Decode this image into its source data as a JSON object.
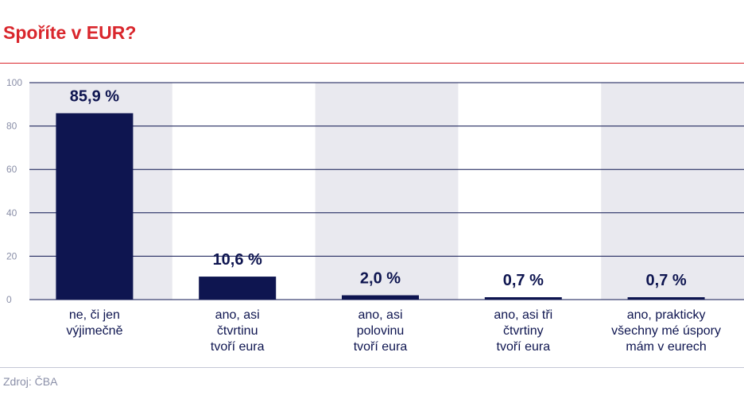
{
  "title": "Spoříte v EUR?",
  "source": "Zdroj: ČBA",
  "colors": {
    "title": "#d9262c",
    "bar": "#0e1550",
    "band": "#e9e9ef",
    "grid": "#0e1550",
    "tick": "#8a8fa8"
  },
  "chart_data": {
    "type": "bar",
    "categories": [
      [
        "ne, či jen",
        "výjimečně"
      ],
      [
        "ano, asi",
        "čtvrtinu",
        "tvoří eura"
      ],
      [
        "ano, asi",
        "polovinu",
        "tvoří eura"
      ],
      [
        "ano, asi tři",
        "čtvrtiny",
        "tvoří eura"
      ],
      [
        "ano, prakticky",
        "všechny mé úspory",
        "mám v eurech"
      ]
    ],
    "values": [
      85.9,
      10.6,
      2.0,
      0.7,
      0.7
    ],
    "value_labels": [
      "85,9 %",
      "10,6 %",
      "2,0 %",
      "0,7 %",
      "0,7 %"
    ],
    "yticks": [
      "0",
      "20",
      "40",
      "60",
      "80",
      "100"
    ],
    "ylim": [
      0,
      100
    ],
    "grid": true,
    "alternating_bands": true
  }
}
